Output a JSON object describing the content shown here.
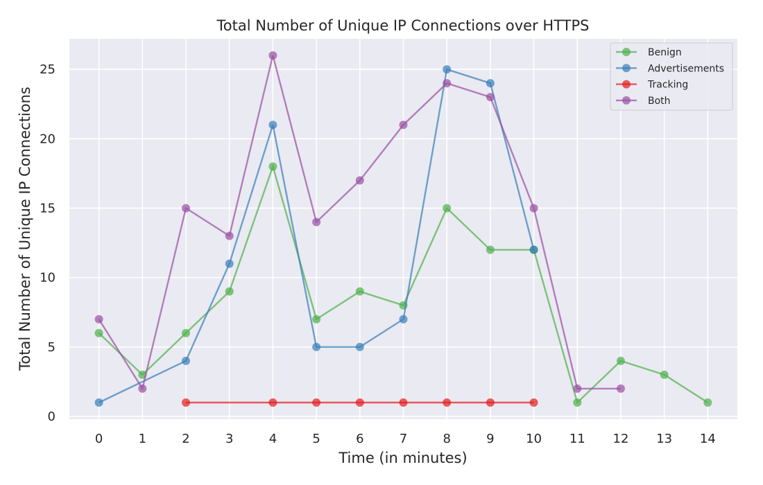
{
  "chart_data": {
    "type": "line",
    "title": "Total Number of Unique IP Connections over HTTPS",
    "xlabel": "Time (in minutes)",
    "ylabel": "Total Number of Unique IP Connections",
    "xlim": [
      -0.68,
      14.68
    ],
    "ylim": [
      -0.2,
      27.2
    ],
    "x_ticks": [
      0,
      1,
      2,
      3,
      4,
      5,
      6,
      7,
      8,
      9,
      10,
      11,
      12,
      13,
      14
    ],
    "y_ticks": [
      0,
      5,
      10,
      15,
      20,
      25
    ],
    "grid": true,
    "legend_position": "top-right",
    "series": [
      {
        "name": "Benign",
        "color": "#4daf4a",
        "points": [
          [
            0,
            6
          ],
          [
            1,
            3
          ],
          [
            2,
            6
          ],
          [
            3,
            9
          ],
          [
            4,
            18
          ],
          [
            5,
            7
          ],
          [
            6,
            9
          ],
          [
            7,
            8
          ],
          [
            8,
            15
          ],
          [
            9,
            12
          ],
          [
            10,
            12
          ],
          [
            11,
            1
          ],
          [
            12,
            4
          ],
          [
            13,
            3
          ],
          [
            14,
            1
          ]
        ]
      },
      {
        "name": "Advertisements",
        "color": "#377eb8",
        "points": [
          [
            0,
            1
          ],
          [
            2,
            4
          ],
          [
            3,
            11
          ],
          [
            4,
            21
          ],
          [
            5,
            5
          ],
          [
            6,
            5
          ],
          [
            7,
            7
          ],
          [
            8,
            25
          ],
          [
            9,
            24
          ],
          [
            10,
            12
          ]
        ]
      },
      {
        "name": "Tracking",
        "color": "#e41a1c",
        "points": [
          [
            2,
            1
          ],
          [
            4,
            1
          ],
          [
            5,
            1
          ],
          [
            6,
            1
          ],
          [
            7,
            1
          ],
          [
            8,
            1
          ],
          [
            9,
            1
          ],
          [
            10,
            1
          ]
        ]
      },
      {
        "name": "Both",
        "color": "#984ea3",
        "points": [
          [
            0,
            7
          ],
          [
            1,
            2
          ],
          [
            2,
            15
          ],
          [
            3,
            13
          ],
          [
            4,
            26
          ],
          [
            5,
            14
          ],
          [
            6,
            17
          ],
          [
            7,
            21
          ],
          [
            8,
            24
          ],
          [
            9,
            23
          ],
          [
            10,
            15
          ],
          [
            11,
            2
          ],
          [
            12,
            2
          ]
        ]
      }
    ]
  }
}
